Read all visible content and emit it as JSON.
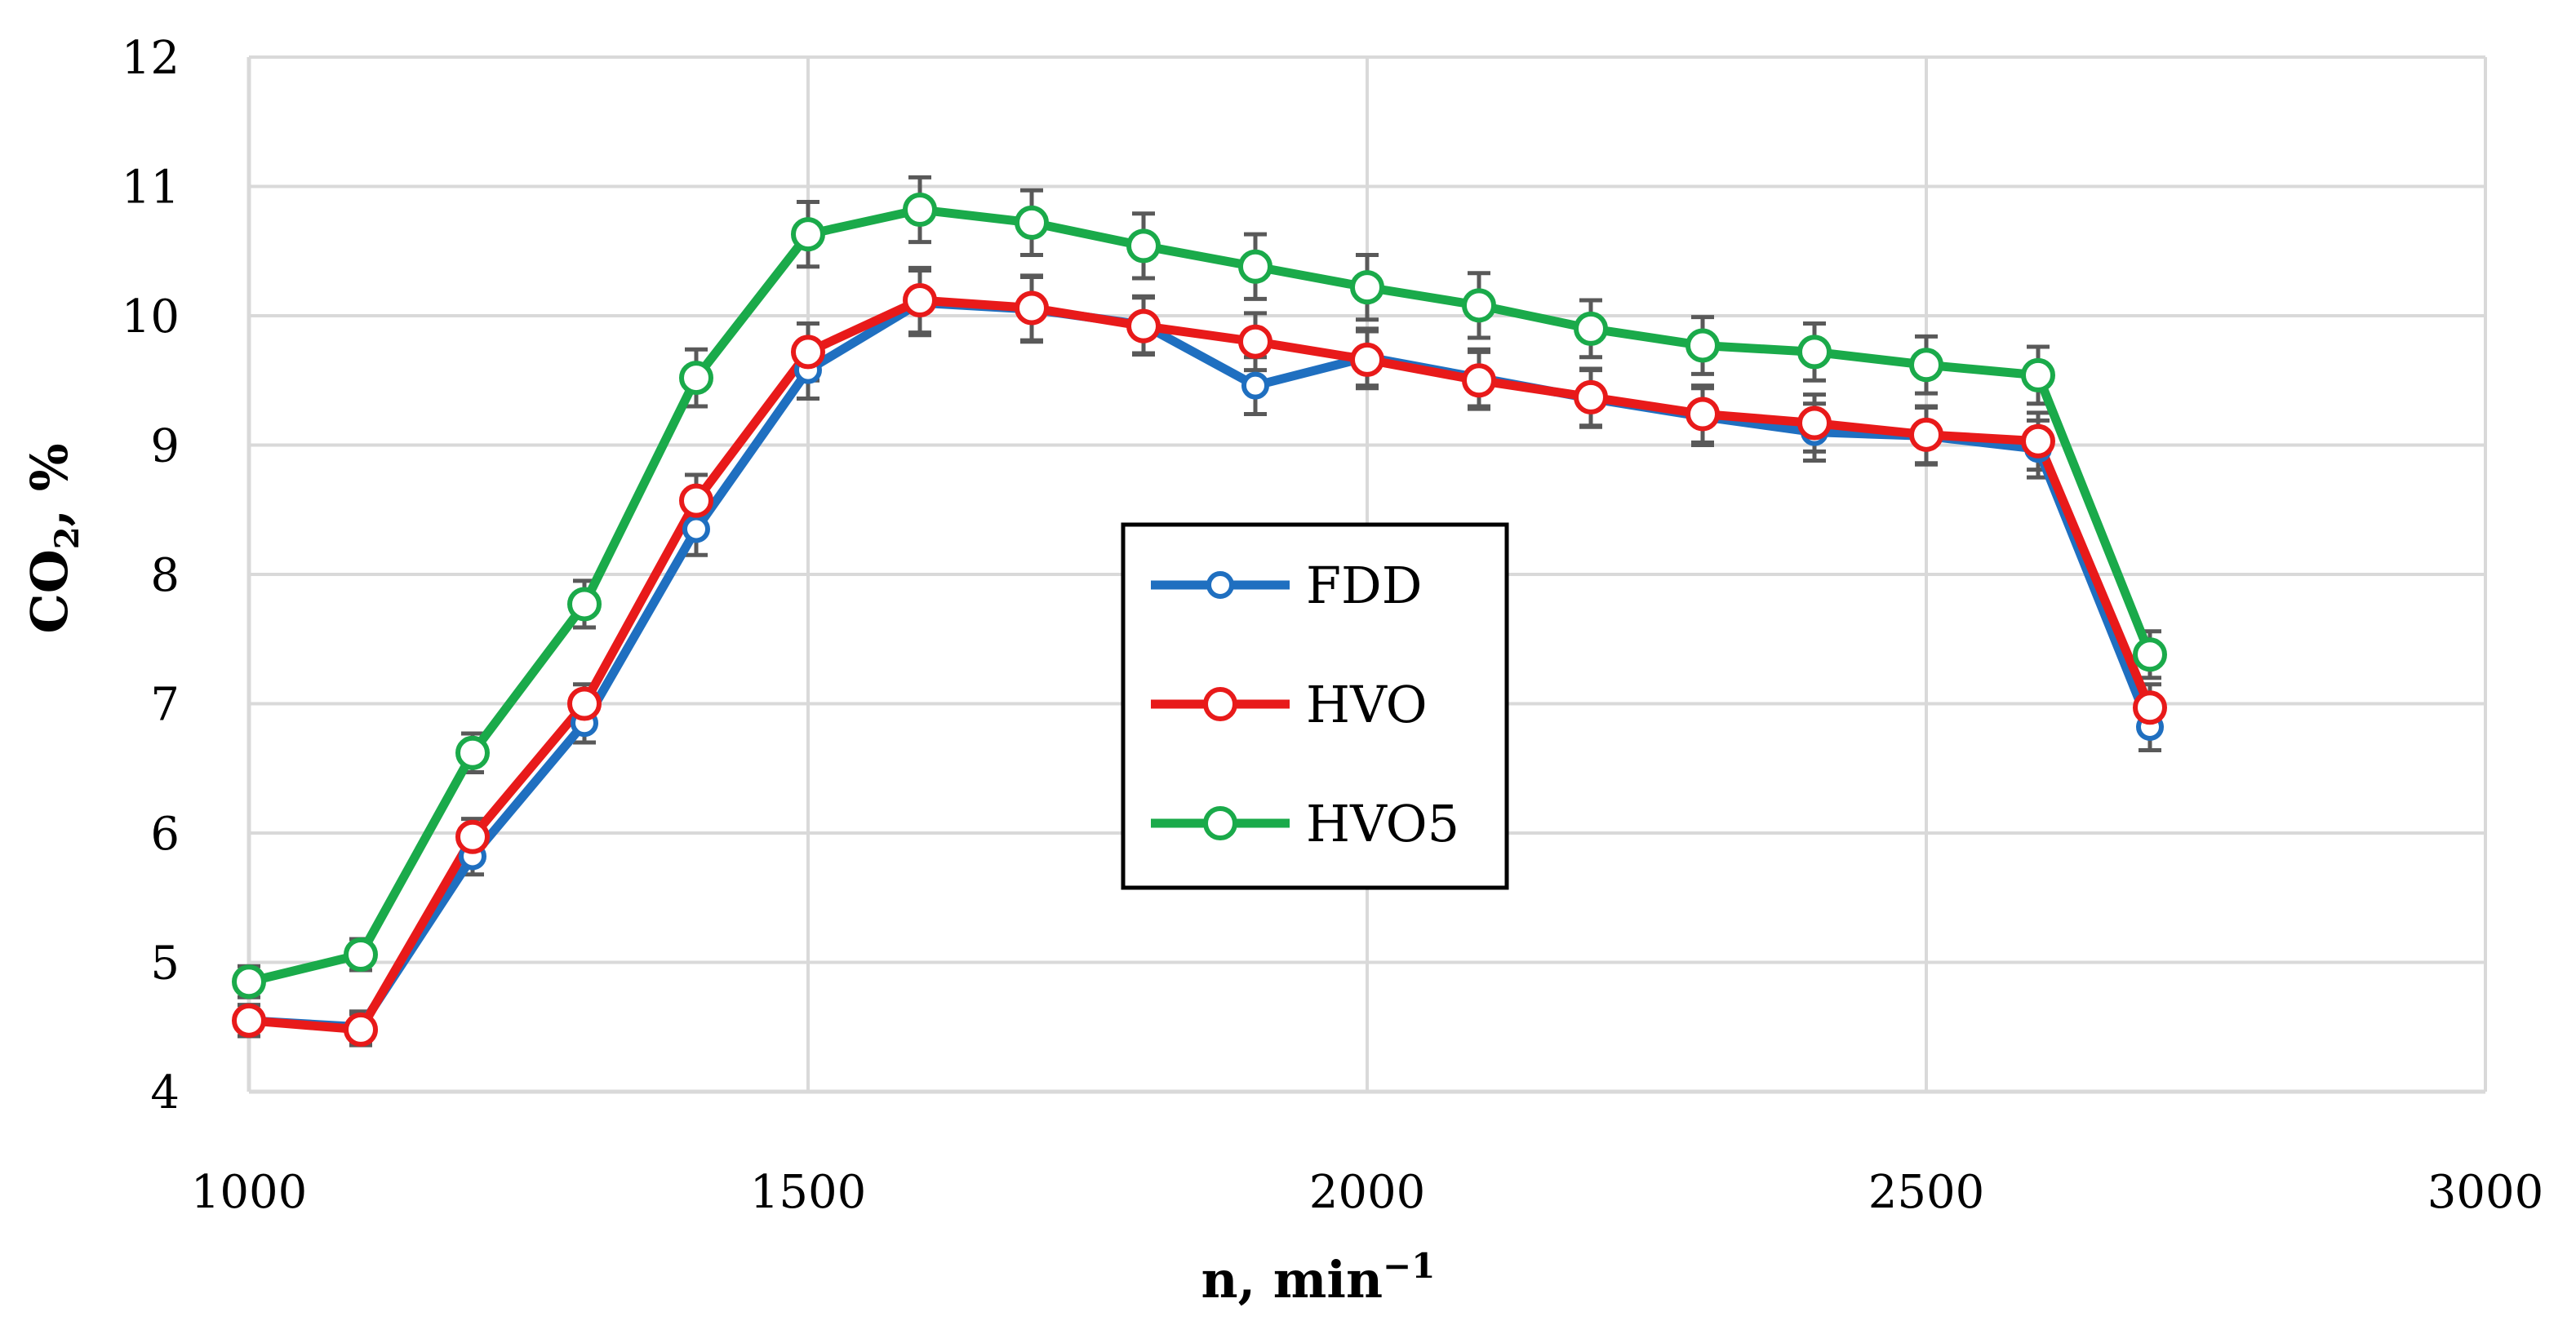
{
  "chart_data": {
    "type": "line",
    "title": "",
    "xlabel_main": "n, min",
    "xlabel_sup": "−1",
    "ylabel_main": "CO",
    "ylabel_sub": "2",
    "ylabel_rest": ", %",
    "xlim": [
      1000,
      3000
    ],
    "ylim": [
      4,
      12
    ],
    "xticks": [
      1000,
      1500,
      2000,
      2500,
      3000
    ],
    "yticks": [
      4,
      5,
      6,
      7,
      8,
      9,
      10,
      11,
      12
    ],
    "grid": true,
    "legend_position": "center",
    "x": [
      1000,
      1100,
      1200,
      1300,
      1400,
      1500,
      1600,
      1700,
      1800,
      1900,
      2000,
      2100,
      2200,
      2300,
      2400,
      2500,
      2600,
      2700
    ],
    "series": [
      {
        "name": "FDD",
        "color": "#1f6fc0",
        "values": [
          4.55,
          4.5,
          5.82,
          6.85,
          8.35,
          9.58,
          10.1,
          10.05,
          9.93,
          9.46,
          9.68,
          9.52,
          9.36,
          9.22,
          9.1,
          9.07,
          8.97,
          6.82
        ],
        "errors": [
          0.12,
          0.12,
          0.14,
          0.15,
          0.2,
          0.22,
          0.25,
          0.25,
          0.22,
          0.22,
          0.22,
          0.22,
          0.22,
          0.22,
          0.22,
          0.22,
          0.22,
          0.18
        ]
      },
      {
        "name": "HVO",
        "color": "#e81a1a",
        "values": [
          4.55,
          4.48,
          5.97,
          7.0,
          8.57,
          9.72,
          10.12,
          10.06,
          9.92,
          9.8,
          9.66,
          9.5,
          9.37,
          9.24,
          9.17,
          9.08,
          9.03,
          6.97
        ],
        "errors": [
          0.12,
          0.12,
          0.14,
          0.15,
          0.2,
          0.22,
          0.25,
          0.25,
          0.22,
          0.22,
          0.22,
          0.22,
          0.22,
          0.22,
          0.22,
          0.22,
          0.22,
          0.18
        ]
      },
      {
        "name": "HVO5",
        "color": "#1aaa4a",
        "values": [
          4.85,
          5.06,
          6.62,
          7.77,
          9.52,
          10.63,
          10.82,
          10.72,
          10.54,
          10.38,
          10.22,
          10.08,
          9.9,
          9.77,
          9.72,
          9.62,
          9.54,
          7.38
        ],
        "errors": [
          0.12,
          0.12,
          0.15,
          0.18,
          0.22,
          0.25,
          0.25,
          0.25,
          0.25,
          0.25,
          0.25,
          0.25,
          0.22,
          0.22,
          0.22,
          0.22,
          0.22,
          0.18
        ]
      }
    ]
  }
}
